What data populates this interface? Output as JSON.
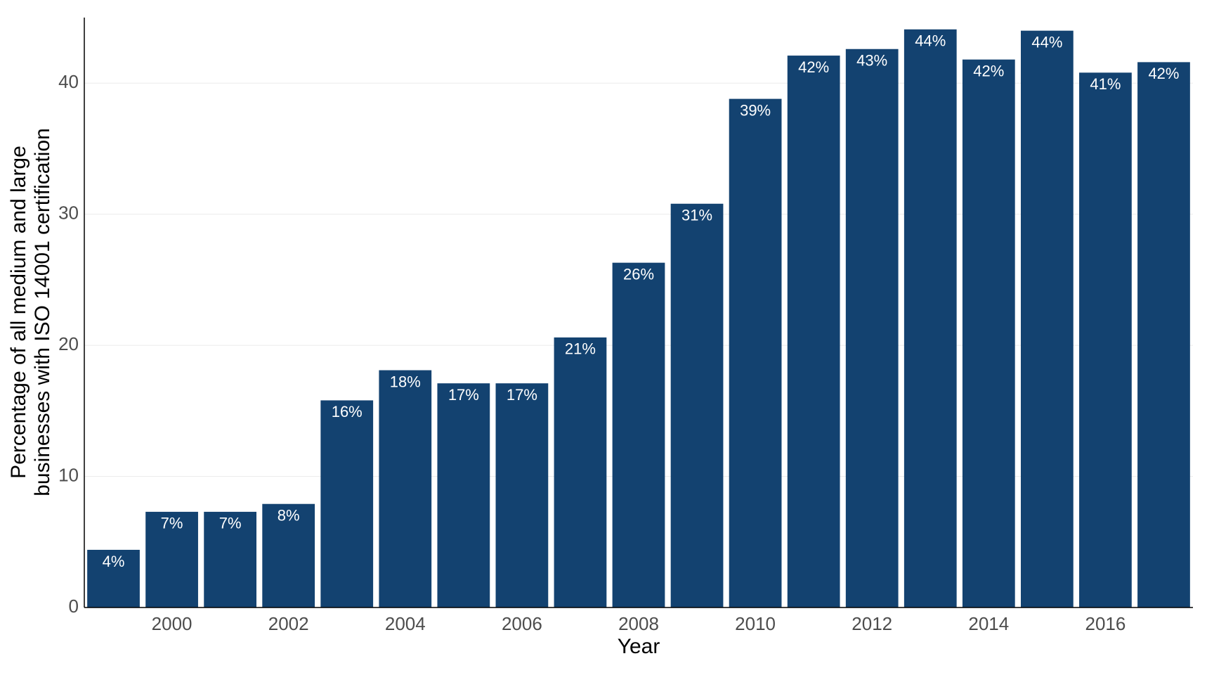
{
  "chart_data": {
    "type": "bar",
    "xlabel": "Year",
    "ylabel": [
      "Percentage of all medium and large",
      "businesses with ISO 14001 certification"
    ],
    "x": [
      1999,
      2000,
      2001,
      2002,
      2003,
      2004,
      2005,
      2006,
      2007,
      2008,
      2009,
      2010,
      2011,
      2012,
      2013,
      2014,
      2015,
      2016,
      2017
    ],
    "values": [
      4.4,
      7.3,
      7.3,
      7.9,
      15.8,
      18.1,
      17.1,
      17.1,
      20.6,
      26.3,
      30.8,
      38.8,
      42.1,
      42.6,
      44.1,
      41.8,
      44.0,
      40.8,
      41.6
    ],
    "value_labels": [
      "4%",
      "7%",
      "7%",
      "8%",
      "16%",
      "18%",
      "17%",
      "17%",
      "21%",
      "26%",
      "31%",
      "39%",
      "42%",
      "43%",
      "44%",
      "42%",
      "44%",
      "41%",
      "42%"
    ],
    "color": "#134270",
    "xlim": [
      1998.5,
      2017.5
    ],
    "xticks": [
      2000,
      2002,
      2004,
      2006,
      2008,
      2010,
      2012,
      2014,
      2016
    ],
    "ylim": [
      0,
      45
    ],
    "yticks": [
      0,
      10,
      20,
      30,
      40
    ],
    "grid": true
  }
}
